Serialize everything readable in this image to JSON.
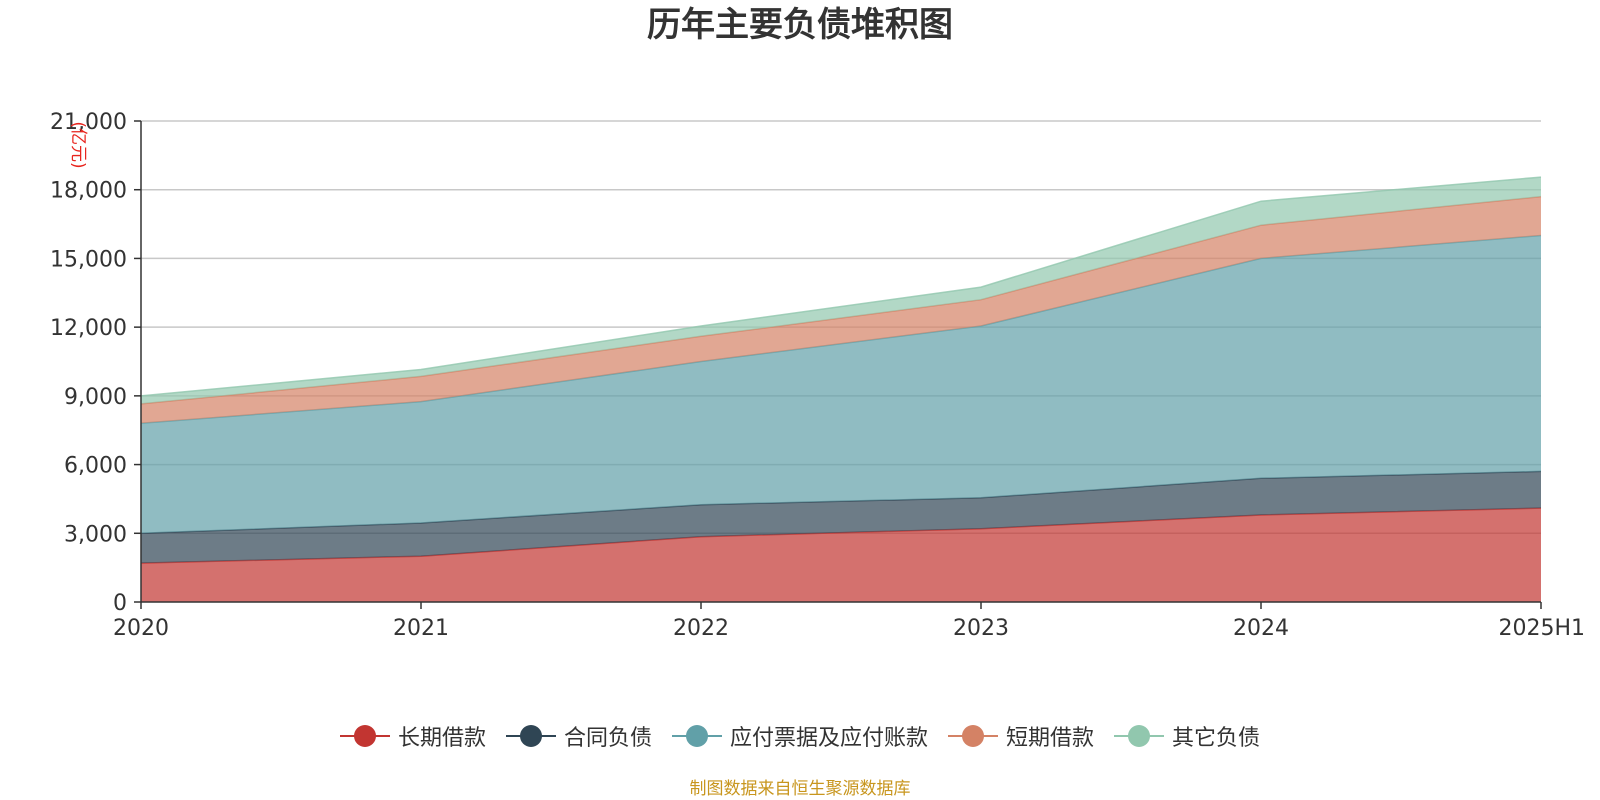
{
  "chart_data": {
    "type": "area",
    "stacked": true,
    "title": "历年主要负债堆积图",
    "y_unit_label": "(亿元)",
    "categories": [
      "2020",
      "2021",
      "2022",
      "2023",
      "2024",
      "2025H1"
    ],
    "ylim": [
      0,
      21000
    ],
    "yticks": [
      0,
      3000,
      6000,
      9000,
      12000,
      15000,
      18000,
      21000
    ],
    "ytick_labels": [
      "0",
      "3,000",
      "6,000",
      "9,000",
      "12,000",
      "15,000",
      "18,000",
      "21,000"
    ],
    "grid": true,
    "legend_position": "bottom",
    "series": [
      {
        "name": "长期借款",
        "color": "#c23531",
        "values": [
          1700,
          2000,
          2850,
          3200,
          3800,
          4100
        ]
      },
      {
        "name": "合同负债",
        "color": "#2f4554",
        "values": [
          1300,
          1450,
          1400,
          1350,
          1600,
          1600
        ]
      },
      {
        "name": "应付票据及应付账款",
        "color": "#61a0a8",
        "values": [
          4800,
          5300,
          6250,
          7500,
          9600,
          10300
        ]
      },
      {
        "name": "短期借款",
        "color": "#d48265",
        "values": [
          850,
          1100,
          1100,
          1150,
          1450,
          1700
        ]
      },
      {
        "name": "其它负债",
        "color": "#91c7ae",
        "values": [
          350,
          300,
          450,
          550,
          1050,
          850
        ]
      }
    ]
  },
  "source_note": "制图数据来自恒生聚源数据库"
}
